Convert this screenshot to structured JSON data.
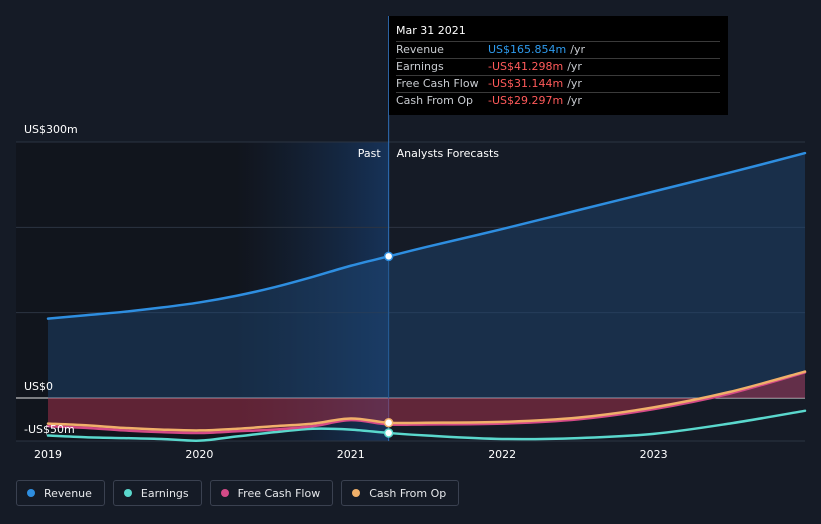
{
  "tooltip": {
    "date": "Mar 31 2021",
    "rows": [
      {
        "label": "Revenue",
        "value": "US$165.854m",
        "unit": "/yr",
        "color": "#2e9bee"
      },
      {
        "label": "Earnings",
        "value": "-US$41.298m",
        "unit": "/yr",
        "color": "#ff5a5a"
      },
      {
        "label": "Free Cash Flow",
        "value": "-US$31.144m",
        "unit": "/yr",
        "color": "#ff5a5a"
      },
      {
        "label": "Cash From Op",
        "value": "-US$29.297m",
        "unit": "/yr",
        "color": "#ff5a5a"
      }
    ]
  },
  "legend": [
    {
      "label": "Revenue",
      "color": "#2e8ee0"
    },
    {
      "label": "Earnings",
      "color": "#5ad8cd"
    },
    {
      "label": "Free Cash Flow",
      "color": "#d44a87"
    },
    {
      "label": "Cash From Op",
      "color": "#f0b06a"
    }
  ],
  "chart_data": {
    "type": "line",
    "title": "",
    "y_tick_labels": [
      "US$300m",
      "US$0",
      "-US$50m"
    ],
    "x_tick_labels": [
      "2019",
      "2020",
      "2021",
      "2022",
      "2023"
    ],
    "past_label": "Past",
    "forecast_label": "Analysts Forecasts",
    "highlight_x": 2021.25,
    "ylim": [
      -50,
      300
    ],
    "xlim": [
      2018.9,
      2024.0
    ],
    "series": [
      {
        "name": "Revenue",
        "color": "#2e8ee0",
        "x": [
          2019.0,
          2019.25,
          2019.5,
          2019.75,
          2020.0,
          2020.25,
          2020.5,
          2020.75,
          2021.0,
          2021.25,
          2021.5,
          2022.0,
          2022.5,
          2023.0,
          2023.5,
          2024.0
        ],
        "values": [
          93,
          97,
          101,
          106,
          112,
          120,
          130,
          142,
          155,
          166,
          177,
          198,
          220,
          242,
          264,
          287
        ]
      },
      {
        "name": "Earnings",
        "color": "#5ad8cd",
        "x": [
          2019.0,
          2019.25,
          2019.5,
          2019.75,
          2020.0,
          2020.25,
          2020.5,
          2020.75,
          2021.0,
          2021.25,
          2021.5,
          2022.0,
          2022.5,
          2023.0,
          2023.5,
          2024.0
        ],
        "values": [
          -44,
          -46,
          -47,
          -48,
          -50,
          -45,
          -40,
          -36,
          -37,
          -41,
          -44,
          -48,
          -47,
          -42,
          -30,
          -15
        ]
      },
      {
        "name": "Free Cash Flow",
        "color": "#d44a87",
        "x": [
          2019.0,
          2019.25,
          2019.5,
          2019.75,
          2020.0,
          2020.25,
          2020.5,
          2020.75,
          2021.0,
          2021.25,
          2021.5,
          2022.0,
          2022.5,
          2023.0,
          2023.5,
          2024.0
        ],
        "values": [
          -33,
          -35,
          -38,
          -40,
          -41,
          -39,
          -37,
          -33,
          -26,
          -31,
          -31,
          -30,
          -25,
          -13,
          5,
          30
        ]
      },
      {
        "name": "Cash From Op",
        "color": "#f0b06a",
        "x": [
          2019.0,
          2019.25,
          2019.5,
          2019.75,
          2020.0,
          2020.25,
          2020.5,
          2020.75,
          2021.0,
          2021.25,
          2021.5,
          2022.0,
          2022.5,
          2023.0,
          2023.5,
          2024.0
        ],
        "values": [
          -30,
          -32,
          -35,
          -37,
          -38,
          -36,
          -33,
          -30,
          -24,
          -29,
          -29,
          -28,
          -23,
          -11,
          7,
          31
        ]
      }
    ]
  }
}
